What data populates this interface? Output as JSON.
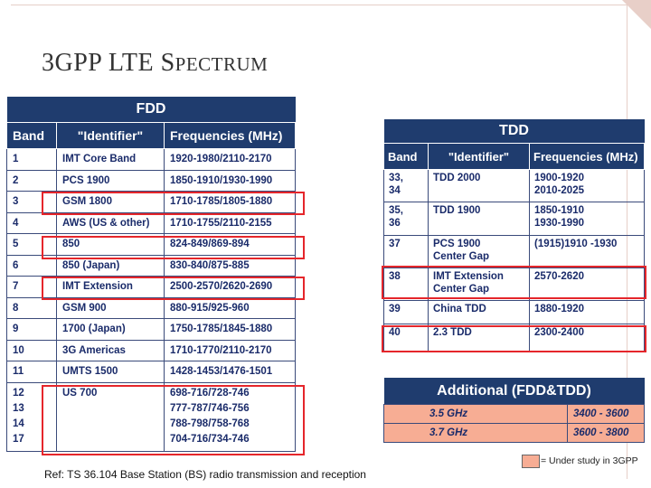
{
  "slide": {
    "title_large": "3GPP LTE S",
    "title_small": "PECTRUM"
  },
  "fdd": {
    "title": "FDD",
    "headers": [
      "Band",
      "\"Identifier\"",
      "Frequencies (MHz)"
    ],
    "rows": [
      [
        "1",
        "IMT Core Band",
        "1920-1980/2110-2170"
      ],
      [
        "2",
        "PCS 1900",
        "1850-1910/1930-1990"
      ],
      [
        "3",
        "GSM 1800",
        "1710-1785/1805-1880"
      ],
      [
        "4",
        "AWS (US & other)",
        "1710-1755/2110-2155"
      ],
      [
        "5",
        "850",
        "824-849/869-894"
      ],
      [
        "6",
        "850 (Japan)",
        "830-840/875-885"
      ],
      [
        "7",
        "IMT Extension",
        "2500-2570/2620-2690"
      ],
      [
        "8",
        "GSM 900",
        "880-915/925-960"
      ],
      [
        "9",
        "1700 (Japan)",
        "1750-1785/1845-1880"
      ],
      [
        "10",
        "3G Americas",
        "1710-1770/2110-2170"
      ],
      [
        "11",
        "UMTS 1500",
        "1428-1453/1476-1501"
      ]
    ],
    "us700": {
      "bands": [
        "12",
        "13",
        "14",
        "17"
      ],
      "identifier": "US 700",
      "frequencies": [
        "698-716/728-746",
        "777-787/746-756",
        "788-798/758-768",
        "704-716/734-746"
      ]
    }
  },
  "tdd": {
    "title": "TDD",
    "headers": [
      "Band",
      "\"Identifier\"",
      "Frequencies (MHz)"
    ],
    "rows": [
      {
        "band": [
          "33,",
          "34"
        ],
        "id": [
          "TDD 2000"
        ],
        "freq": [
          "1900-1920",
          "2010-2025"
        ]
      },
      {
        "band": [
          "35,",
          "36"
        ],
        "id": [
          "TDD 1900"
        ],
        "freq": [
          "1850-1910",
          "1930-1990"
        ]
      },
      {
        "band": [
          "37"
        ],
        "id": [
          "PCS 1900",
          "Center Gap"
        ],
        "freq": [
          "(1915)1910 -1930"
        ]
      },
      {
        "band": [
          "38"
        ],
        "id": [
          "IMT Extension",
          "Center Gap"
        ],
        "freq": [
          "2570-2620"
        ]
      },
      {
        "band": [
          "39"
        ],
        "id": [
          "China TDD"
        ],
        "freq": [
          "1880-1920"
        ]
      },
      {
        "band": [
          "40"
        ],
        "id": [
          "2.3 TDD"
        ],
        "freq": [
          "2300-2400"
        ]
      }
    ]
  },
  "additional": {
    "title": "Additional  (FDD&TDD)",
    "rows": [
      [
        "3.5 GHz",
        "3400 - 3600"
      ],
      [
        "3.7 GHz",
        "3600 - 3800"
      ]
    ]
  },
  "legend": {
    "label": "= Under study in 3GPP",
    "color": "#f7ad94"
  },
  "reference": "Ref: TS 36.104 Base Station (BS) radio transmission and reception",
  "colors": {
    "header_bg": "#1f3c6e",
    "highlight": "#e5262b",
    "text": "#1a2b6a"
  }
}
